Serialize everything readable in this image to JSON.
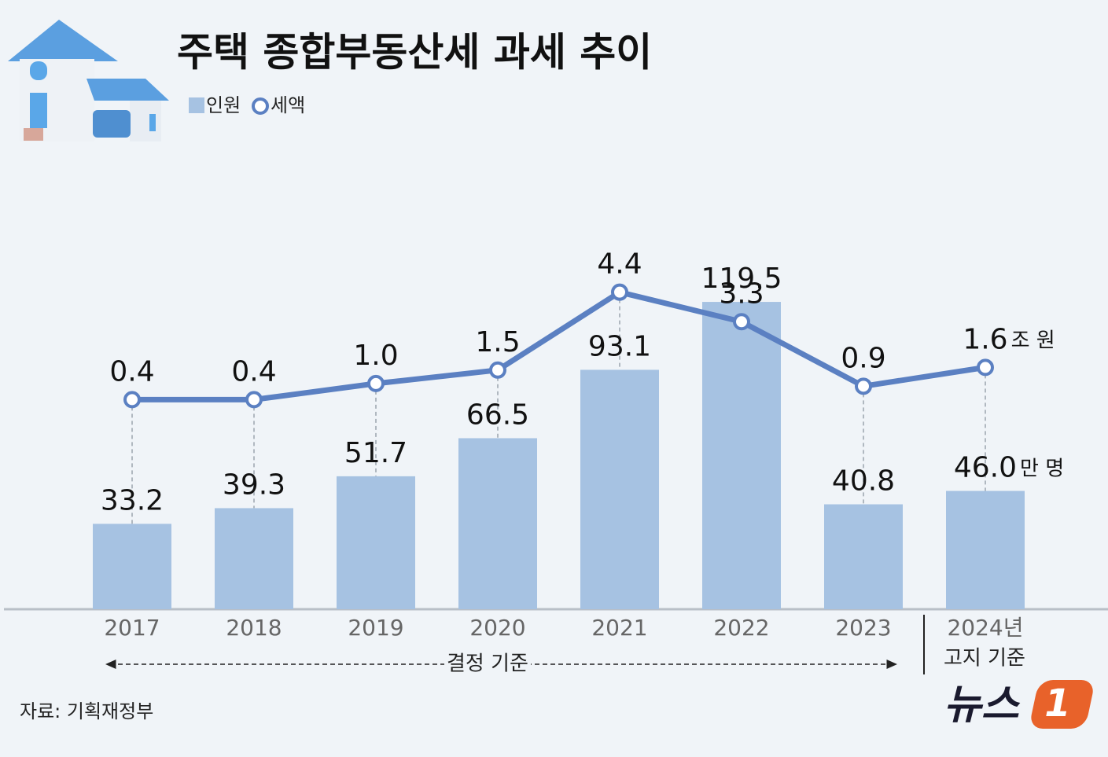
{
  "chart_data": {
    "type": "bar_line",
    "title": "주택 종합부동산세 과세 추이",
    "categories": [
      "2017",
      "2018",
      "2019",
      "2020",
      "2021",
      "2022",
      "2023",
      "2024년"
    ],
    "series": [
      {
        "name": "인원",
        "type": "bar",
        "color": "#a6c2e2",
        "unit": "만 명",
        "values": [
          33.2,
          39.3,
          51.7,
          66.5,
          93.1,
          119.5,
          40.8,
          46.0
        ],
        "value_labels": [
          "33.2",
          "39.3",
          "51.7",
          "66.5",
          "93.1",
          "119.5",
          "40.8",
          "46.0"
        ]
      },
      {
        "name": "세액",
        "type": "line",
        "color": "#5b80c2",
        "axis": "y2",
        "unit": "조 원",
        "values": [
          0.4,
          0.4,
          1.0,
          1.5,
          4.4,
          3.3,
          0.9,
          1.6
        ],
        "value_labels": [
          "0.4",
          "0.4",
          "1.0",
          "1.5",
          "4.4",
          "3.3",
          "0.9",
          "1.6"
        ]
      }
    ],
    "ylim": [
      0,
      140
    ],
    "y2lim": [
      -7.4,
      6.0
    ],
    "annotations": {
      "decided": "결정 기준",
      "notified": "고지 기준"
    },
    "source": "자료: 기획재정부",
    "logo": {
      "text": "뉴스",
      "number": "1"
    }
  }
}
